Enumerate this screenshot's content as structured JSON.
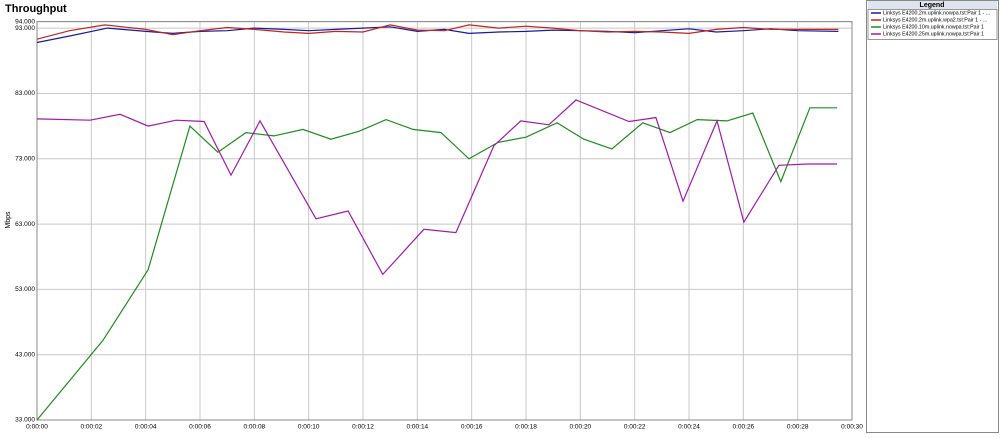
{
  "chart_data": {
    "type": "line",
    "title": "Throughput",
    "y_label": "Mbps",
    "legend_title": "Legend",
    "xlim": [
      0,
      30
    ],
    "ylim": [
      33,
      94
    ],
    "grid": true,
    "xticks": [
      {
        "value": 0,
        "label": "0:00:00"
      },
      {
        "value": 2,
        "label": "0:00:02"
      },
      {
        "value": 4,
        "label": "0:00:04"
      },
      {
        "value": 6,
        "label": "0:00:06"
      },
      {
        "value": 8,
        "label": "0:00:08"
      },
      {
        "value": 10,
        "label": "0:00:10"
      },
      {
        "value": 12,
        "label": "0:00:12"
      },
      {
        "value": 14,
        "label": "0:00:14"
      },
      {
        "value": 16,
        "label": "0:00:16"
      },
      {
        "value": 18,
        "label": "0:00:18"
      },
      {
        "value": 20,
        "label": "0:00:20"
      },
      {
        "value": 22,
        "label": "0:00:22"
      },
      {
        "value": 24,
        "label": "0:00:24"
      },
      {
        "value": 26,
        "label": "0:00:26"
      },
      {
        "value": 28,
        "label": "0:00:28"
      },
      {
        "value": 30,
        "label": "0:00:30"
      }
    ],
    "yticks": [
      {
        "value": 33,
        "label": "33.000"
      },
      {
        "value": 43,
        "label": "43.000"
      },
      {
        "value": 53,
        "label": "53.000"
      },
      {
        "value": 63,
        "label": "63.000"
      },
      {
        "value": 73,
        "label": "73.000"
      },
      {
        "value": 83,
        "label": "83.000"
      },
      {
        "value": 93,
        "label": "93.000"
      },
      {
        "value": 94,
        "label": "94.000"
      }
    ],
    "series": [
      {
        "name": "Linksys E4200.2m.uplink.nowpa.tst:Pair 1 - ...",
        "color": "#1a1a9c",
        "x": [
          0,
          1.2,
          2.6,
          4,
          5,
          6,
          7,
          8,
          9.1,
          10,
          11,
          12,
          13,
          14,
          15,
          15.9,
          17,
          18,
          19,
          20,
          21,
          22,
          23,
          24,
          25,
          26,
          27,
          28,
          29.5
        ],
        "values": [
          90.8,
          91.8,
          93.0,
          92.5,
          92.2,
          92.5,
          92.6,
          93.0,
          92.8,
          92.6,
          92.8,
          93.0,
          93.2,
          92.5,
          92.8,
          92.2,
          92.4,
          92.5,
          92.7,
          92.6,
          92.5,
          92.3,
          92.6,
          92.9,
          92.4,
          92.6,
          92.9,
          92.6,
          92.5
        ]
      },
      {
        "name": "Linksys E4200.2m.uplink.wpa2.tst:Pair 1 - ...",
        "color": "#c0261c",
        "x": [
          0,
          1.2,
          2.5,
          4,
          5,
          6,
          7,
          8,
          9.1,
          10,
          11,
          12,
          13,
          14,
          15,
          15.9,
          17,
          18,
          19,
          20,
          21,
          22,
          23,
          24,
          25,
          26,
          27,
          28,
          29.5
        ],
        "values": [
          91.3,
          92.6,
          93.5,
          92.8,
          92.0,
          92.6,
          93.1,
          92.8,
          92.4,
          92.2,
          92.5,
          92.4,
          93.5,
          92.7,
          92.6,
          93.5,
          93.0,
          93.3,
          93.0,
          92.6,
          92.4,
          92.5,
          92.4,
          92.2,
          92.8,
          93.1,
          92.8,
          92.8,
          92.8
        ]
      },
      {
        "name": "Linksys E4200.10m.uplink.nowpa.tst:Pair 1",
        "color": "#1e8c1e",
        "x": [
          0,
          2.43,
          4.09,
          5.63,
          6.66,
          7.69,
          8.72,
          9.79,
          10.82,
          11.85,
          12.85,
          13.84,
          14.87,
          15.9,
          16.97,
          18.0,
          19.14,
          20.13,
          21.16,
          22.3,
          23.3,
          24.3,
          25.4,
          26.35,
          27.38,
          28.45,
          29.45
        ],
        "values": [
          33,
          45.2,
          56,
          78,
          74,
          77,
          76.5,
          77.5,
          76,
          77.2,
          79,
          77.5,
          77,
          73,
          75.5,
          76.3,
          78.5,
          76,
          74.5,
          78.5,
          77,
          79,
          78.8,
          80,
          69.5,
          80.8,
          80.8
        ]
      },
      {
        "name": "Linksys E4200.25m.uplink.nowpa.tst:Pair 1",
        "color": "#a01aa8",
        "x": [
          0,
          1.95,
          3.06,
          4.09,
          5.12,
          6.15,
          7.14,
          8.21,
          10.27,
          11.45,
          12.73,
          14.24,
          15.42,
          16.82,
          17.81,
          18.84,
          19.84,
          21.79,
          22.78,
          23.78,
          25.03,
          26.02,
          27.31,
          28.37,
          29.45
        ],
        "values": [
          79.1,
          78.9,
          79.8,
          78,
          78.9,
          78.7,
          70.5,
          78.8,
          63.8,
          65,
          55.3,
          62.2,
          61.7,
          75,
          78.8,
          78.2,
          82,
          78.7,
          79.3,
          66.5,
          78.8,
          63.3,
          72,
          72.2,
          72.2
        ]
      }
    ]
  }
}
